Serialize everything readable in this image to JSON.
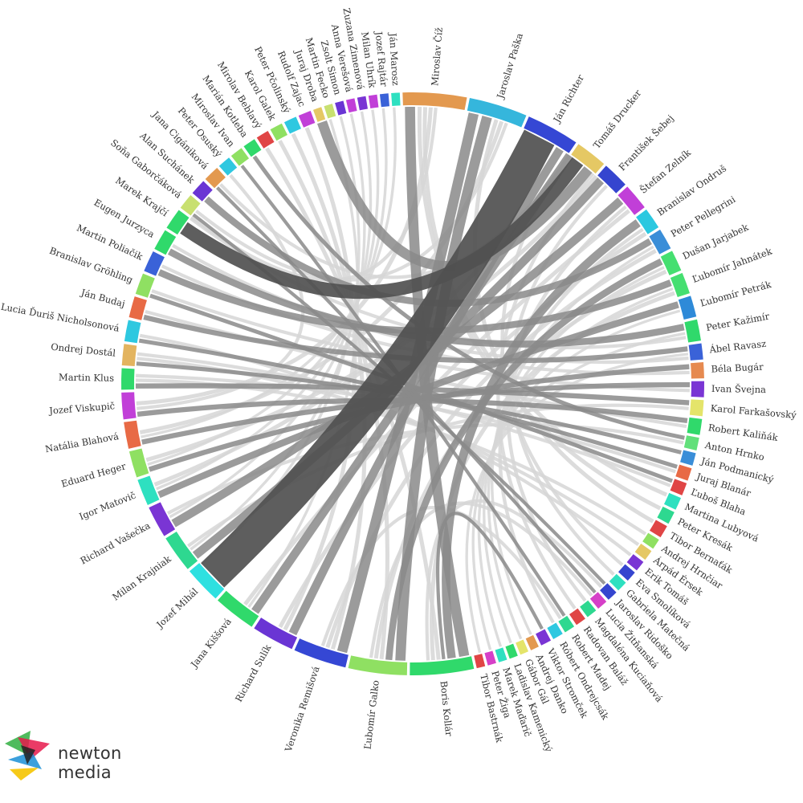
{
  "brand": {
    "name": "newton media",
    "logo_colors": [
      "#3cb44b",
      "#e6194b",
      "#1a8fd6",
      "#f5c400",
      "#222222"
    ]
  },
  "chart_data": {
    "type": "chord",
    "nodes": [
      {
        "name": "Miroslav Číž",
        "weight": 6,
        "color": "#e3994f"
      },
      {
        "name": "Jaroslav Paška",
        "weight": 5.5,
        "color": "#35b6dc"
      },
      {
        "name": "Ján Richter",
        "weight": 5,
        "color": "#3547d4"
      },
      {
        "name": "Tomáš Drucker",
        "weight": 3,
        "color": "#e5c864"
      },
      {
        "name": "František Šebej",
        "weight": 2.5,
        "color": "#3545cf"
      },
      {
        "name": "Štefan Zelník",
        "weight": 2.5,
        "color": "#c13fd8"
      },
      {
        "name": "Branislav Ondruš",
        "weight": 2,
        "color": "#2bc8e0"
      },
      {
        "name": "Peter Pellegrini",
        "weight": 2,
        "color": "#3a8ed8"
      },
      {
        "name": "Dušan Jarjabek",
        "weight": 2,
        "color": "#45df70"
      },
      {
        "name": "Ľubomír Jahnátek",
        "weight": 2,
        "color": "#45df70"
      },
      {
        "name": "Ľubomír Petrák",
        "weight": 2,
        "color": "#2e8ad8"
      },
      {
        "name": "Peter Kažimír",
        "weight": 2,
        "color": "#30d96b"
      },
      {
        "name": "Ábel Ravasz",
        "weight": 1.5,
        "color": "#3a62d8"
      },
      {
        "name": "Béla Bugár",
        "weight": 1.5,
        "color": "#e68a50"
      },
      {
        "name": "Ivan Švejna",
        "weight": 1.5,
        "color": "#7a35d4"
      },
      {
        "name": "Karol Farkašovský",
        "weight": 1.5,
        "color": "#e4e46a"
      },
      {
        "name": "Robert Kaliňák",
        "weight": 1.5,
        "color": "#30d96b"
      },
      {
        "name": "Anton Hrnko",
        "weight": 1.2,
        "color": "#62e07a"
      },
      {
        "name": "Ján Podmanický",
        "weight": 1.2,
        "color": "#3a8ed8"
      },
      {
        "name": "Juraj Blanár",
        "weight": 1.2,
        "color": "#e86a45"
      },
      {
        "name": "Ľuboš Blaha",
        "weight": 1.2,
        "color": "#e04545"
      },
      {
        "name": "Martina Lubyová",
        "weight": 1.2,
        "color": "#2ee0c0"
      },
      {
        "name": "Peter Kresák",
        "weight": 1.2,
        "color": "#2ed890"
      },
      {
        "name": "Tibor Bernaťák",
        "weight": 1.2,
        "color": "#e04545"
      },
      {
        "name": "Andrej Hrnčiar",
        "weight": 1,
        "color": "#8fe062"
      },
      {
        "name": "Árpád Érsek",
        "weight": 1,
        "color": "#e5c864"
      },
      {
        "name": "Erik Tomáš",
        "weight": 1,
        "color": "#7a35d4"
      },
      {
        "name": "Eva Smolíková",
        "weight": 1,
        "color": "#3545cf"
      },
      {
        "name": "Gabriela Matečná",
        "weight": 1,
        "color": "#2ee0c0"
      },
      {
        "name": "Jaroslav Ridoško",
        "weight": 1,
        "color": "#3545cf"
      },
      {
        "name": "Lucia Žitňanská",
        "weight": 1,
        "color": "#d640c8"
      },
      {
        "name": "Magdaléna Kuciaňová",
        "weight": 1,
        "color": "#2ed890"
      },
      {
        "name": "Radovan Baláž",
        "weight": 1,
        "color": "#e04545"
      },
      {
        "name": "Robert Madej",
        "weight": 1,
        "color": "#2ed890"
      },
      {
        "name": "Róbert Ondrejcsák",
        "weight": 1,
        "color": "#2ec8e0"
      },
      {
        "name": "Viktor Stromček",
        "weight": 1,
        "color": "#7a35d4"
      },
      {
        "name": "Andrej Danko",
        "weight": 0.8,
        "color": "#e3994f"
      },
      {
        "name": "Gábor Gál",
        "weight": 0.8,
        "color": "#e4e46a"
      },
      {
        "name": "Ladislav Kamenický",
        "weight": 0.8,
        "color": "#30d96b"
      },
      {
        "name": "Marek Maďarič",
        "weight": 0.8,
        "color": "#2ee0c0"
      },
      {
        "name": "Peter Žiga",
        "weight": 0.8,
        "color": "#d640c8"
      },
      {
        "name": "Tibor Bastrnák",
        "weight": 0.8,
        "color": "#e04545"
      },
      {
        "name": "Boris Kollár",
        "weight": 6,
        "color": "#30d96b"
      },
      {
        "name": "Ľubomír Galko",
        "weight": 5.5,
        "color": "#8fe062"
      },
      {
        "name": "Veronika Remišová",
        "weight": 5,
        "color": "#3547d4"
      },
      {
        "name": "Richard Sulík",
        "weight": 4,
        "color": "#6a35d4"
      },
      {
        "name": "Jana Kiššová",
        "weight": 4,
        "color": "#30d96b"
      },
      {
        "name": "Jozef Mihál",
        "weight": 3.5,
        "color": "#2ee0e0"
      },
      {
        "name": "Milan Krajniak",
        "weight": 3.5,
        "color": "#2ed890"
      },
      {
        "name": "Richard Vašečka",
        "weight": 3,
        "color": "#7a35d4"
      },
      {
        "name": "Igor Matovič",
        "weight": 2.5,
        "color": "#2ee0c0"
      },
      {
        "name": "Eduard Heger",
        "weight": 2.5,
        "color": "#8fe062"
      },
      {
        "name": "Natália Blahová",
        "weight": 2.5,
        "color": "#e86a45"
      },
      {
        "name": "Jozef Viskupič",
        "weight": 2.5,
        "color": "#c13fd8"
      },
      {
        "name": "Martin Klus",
        "weight": 2,
        "color": "#30d96b"
      },
      {
        "name": "Ondrej Dostál",
        "weight": 2,
        "color": "#e3b45f"
      },
      {
        "name": "Lucia Ďuriš Nicholsonová",
        "weight": 2,
        "color": "#2ec8e0"
      },
      {
        "name": "Ján Budaj",
        "weight": 2,
        "color": "#e86a45"
      },
      {
        "name": "Branislav Gröhling",
        "weight": 2,
        "color": "#8fe062"
      },
      {
        "name": "Martin Poliačik",
        "weight": 2,
        "color": "#3a62d8"
      },
      {
        "name": "Eugen Jurzyca",
        "weight": 2,
        "color": "#30d96b"
      },
      {
        "name": "Marek Krajčí",
        "weight": 2,
        "color": "#30d96b"
      },
      {
        "name": "Soňa Gaborčáková",
        "weight": 1.5,
        "color": "#c8e070"
      },
      {
        "name": "Alan Suchánek",
        "weight": 1.5,
        "color": "#6a35d4"
      },
      {
        "name": "Jana Cigániková",
        "weight": 1.5,
        "color": "#e3994f"
      },
      {
        "name": "Peter Osuský",
        "weight": 1.2,
        "color": "#2ec8e0"
      },
      {
        "name": "Miroslav Ivan",
        "weight": 1.2,
        "color": "#8fe062"
      },
      {
        "name": "Marián Kotleba",
        "weight": 1.2,
        "color": "#30d96b"
      },
      {
        "name": "Mirolav Beblavý",
        "weight": 1.2,
        "color": "#e04545"
      },
      {
        "name": "Karol Galek",
        "weight": 1.2,
        "color": "#8fe062"
      },
      {
        "name": "Peter Pčolinský",
        "weight": 1.2,
        "color": "#2ec8e0"
      },
      {
        "name": "Rudolf Zajac",
        "weight": 1.2,
        "color": "#c13fd8"
      },
      {
        "name": "Juraj Droba",
        "weight": 0.8,
        "color": "#e5c864"
      },
      {
        "name": "Martin Fecko",
        "weight": 0.8,
        "color": "#c8e070"
      },
      {
        "name": "Zsolt Simon",
        "weight": 0.8,
        "color": "#6a35d4"
      },
      {
        "name": "Anna Verešová",
        "weight": 0.8,
        "color": "#c13fd8"
      },
      {
        "name": "Zuzana Zimenová",
        "weight": 0.8,
        "color": "#7a35d4"
      },
      {
        "name": "Milan Uhrík",
        "weight": 0.8,
        "color": "#c13fd8"
      },
      {
        "name": "Jozef Rajtár",
        "weight": 0.8,
        "color": "#3a62d8"
      },
      {
        "name": "Ján Marosz",
        "weight": 0.8,
        "color": "#2ee0c0"
      }
    ],
    "links": [
      {
        "source": "Ján Richter",
        "target": "Jozef Mihál",
        "value": 10,
        "highlight": "strong"
      },
      {
        "source": "Tomáš Drucker",
        "target": "Marek Krajčí",
        "value": 4,
        "highlight": "strong"
      },
      {
        "source": "Tomáš Drucker",
        "target": "Juraj Droba",
        "value": 3,
        "highlight": "medium"
      },
      {
        "source": "Jaroslav Paška",
        "target": "Veronika Remišová",
        "value": 3,
        "highlight": "medium"
      },
      {
        "source": "Jaroslav Paška",
        "target": "Ľubomír Galko",
        "value": 3,
        "highlight": "medium"
      },
      {
        "source": "Miroslav Číž",
        "target": "Boris Kollár",
        "value": 3,
        "highlight": "medium"
      },
      {
        "source": "Ján Richter",
        "target": "Richard Sulík",
        "value": 2.5,
        "highlight": "medium"
      },
      {
        "source": "Ján Richter",
        "target": "Jana Kiššová",
        "value": 2.5,
        "highlight": "medium"
      },
      {
        "source": "František Šebej",
        "target": "Milan Krajniak",
        "value": 2.5,
        "highlight": "medium"
      },
      {
        "source": "Štefan Zelník",
        "target": "Richard Vašečka",
        "value": 2.5,
        "highlight": "medium"
      },
      {
        "source": "Branislav Ondruš",
        "target": "Boris Kollár",
        "value": 2.5,
        "highlight": "medium"
      },
      {
        "source": "Peter Pellegrini",
        "target": "Alan Suchánek",
        "value": 2,
        "highlight": "medium"
      },
      {
        "source": "Dušan Jarjabek",
        "target": "Ľubomír Galko",
        "value": 2,
        "highlight": "medium"
      },
      {
        "source": "Ľubomír Jahnátek",
        "target": "Martin Poliačik",
        "value": 2,
        "highlight": "medium"
      },
      {
        "source": "Ľubomír Petrák",
        "target": "Igor Matovič",
        "value": 2,
        "highlight": "medium"
      },
      {
        "source": "Peter Kažimír",
        "target": "Eugen Jurzyca",
        "value": 2,
        "highlight": "medium"
      },
      {
        "source": "Ábel Ravasz",
        "target": "Ján Budaj",
        "value": 1.5,
        "highlight": "medium"
      },
      {
        "source": "Béla Bugár",
        "target": "Eduard Heger",
        "value": 1.5,
        "highlight": "medium"
      },
      {
        "source": "Ivan Švejna",
        "target": "Natália Blahová",
        "value": 1.5,
        "highlight": "medium"
      },
      {
        "source": "Robert Kaliňák",
        "target": "Jozef Viskupič",
        "value": 1.5,
        "highlight": "medium"
      },
      {
        "source": "Karol Farkašovský",
        "target": "Martin Klus",
        "value": 1.5,
        "highlight": "medium"
      },
      {
        "source": "Ján Podmanický",
        "target": "Ondrej Dostál",
        "value": 1.2,
        "highlight": "medium"
      },
      {
        "source": "Juraj Blanár",
        "target": "Lucia Ďuriš Nicholsonová",
        "value": 1.2,
        "highlight": "medium"
      },
      {
        "source": "Ľuboš Blaha",
        "target": "Branislav Gröhling",
        "value": 1.2,
        "highlight": "medium"
      },
      {
        "source": "Anton Hrnko",
        "target": "Marián Kotleba",
        "value": 1.2,
        "highlight": "medium"
      },
      {
        "source": "Jaroslav Ridoško",
        "target": "Soňa Gaborčáková",
        "value": 1,
        "highlight": "medium"
      },
      {
        "source": "Lucia Žitňanská",
        "target": "Jana Cigániková",
        "value": 1,
        "highlight": "medium"
      },
      {
        "source": "Robert Madej",
        "target": "Miroslav Ivan",
        "value": 1,
        "highlight": "medium"
      },
      {
        "source": "Viktor Stromček",
        "target": "Boris Kollár",
        "value": 1,
        "highlight": "medium"
      },
      {
        "source": "Miroslav Číž",
        "target": "Peter Kresák",
        "value": 1.2,
        "highlight": "light"
      },
      {
        "source": "Miroslav Číž",
        "target": "Martina Lubyová",
        "value": 1.2,
        "highlight": "light"
      },
      {
        "source": "Jaroslav Paška",
        "target": "Tibor Bernaťák",
        "value": 1.2,
        "highlight": "light"
      },
      {
        "source": "Ján Richter",
        "target": "Eva Smolíková",
        "value": 1,
        "highlight": "light"
      },
      {
        "source": "Tomáš Drucker",
        "target": "Radovan Baláž",
        "value": 1,
        "highlight": "light"
      },
      {
        "source": "František Šebej",
        "target": "Gabriela Matečná",
        "value": 1,
        "highlight": "light"
      },
      {
        "source": "Štefan Zelník",
        "target": "Magdaléna Kuciaňová",
        "value": 1,
        "highlight": "light"
      },
      {
        "source": "Branislav Ondruš",
        "target": "Róbert Ondrejcsák",
        "value": 1,
        "highlight": "light"
      },
      {
        "source": "Peter Pellegrini",
        "target": "Andrej Danko",
        "value": 0.8,
        "highlight": "light"
      },
      {
        "source": "Dušan Jarjabek",
        "target": "Gábor Gál",
        "value": 0.8,
        "highlight": "light"
      },
      {
        "source": "Ľubomír Jahnátek",
        "target": "Ladislav Kamenický",
        "value": 0.8,
        "highlight": "light"
      },
      {
        "source": "Ľubomír Petrák",
        "target": "Marek Maďarič",
        "value": 0.8,
        "highlight": "light"
      },
      {
        "source": "Peter Kažimír",
        "target": "Peter Žiga",
        "value": 0.8,
        "highlight": "light"
      },
      {
        "source": "Ábel Ravasz",
        "target": "Tibor Bastrnák",
        "value": 0.8,
        "highlight": "light"
      },
      {
        "source": "Boris Kollár",
        "target": "Mirolav Beblavý",
        "value": 1.2,
        "highlight": "light"
      },
      {
        "source": "Ľubomír Galko",
        "target": "Karol Galek",
        "value": 1.2,
        "highlight": "light"
      },
      {
        "source": "Veronika Remišová",
        "target": "Peter Pčolinský",
        "value": 1.2,
        "highlight": "light"
      },
      {
        "source": "Richard Sulík",
        "target": "Rudolf Zajac",
        "value": 1.2,
        "highlight": "light"
      },
      {
        "source": "Jana Kiššová",
        "target": "Martin Fecko",
        "value": 0.8,
        "highlight": "light"
      },
      {
        "source": "Jozef Mihál",
        "target": "Zsolt Simon",
        "value": 0.8,
        "highlight": "light"
      },
      {
        "source": "Milan Krajniak",
        "target": "Anna Verešová",
        "value": 0.8,
        "highlight": "light"
      },
      {
        "source": "Richard Vašečka",
        "target": "Zuzana Zimenová",
        "value": 0.8,
        "highlight": "light"
      },
      {
        "source": "Igor Matovič",
        "target": "Milan Uhrík",
        "value": 0.8,
        "highlight": "light"
      },
      {
        "source": "Eduard Heger",
        "target": "Jozef Rajtár",
        "value": 0.8,
        "highlight": "light"
      },
      {
        "source": "Natália Blahová",
        "target": "Ján Marosz",
        "value": 0.8,
        "highlight": "light"
      },
      {
        "source": "Jozef Viskupič",
        "target": "Peter Osuský",
        "value": 1,
        "highlight": "light"
      },
      {
        "source": "Martin Klus",
        "target": "Andrej Hrnčiar",
        "value": 1,
        "highlight": "light"
      },
      {
        "source": "Ondrej Dostál",
        "target": "Árpád Érsek",
        "value": 1,
        "highlight": "light"
      },
      {
        "source": "Lucia Ďuriš Nicholsonová",
        "target": "Erik Tomáš",
        "value": 1,
        "highlight": "light"
      },
      {
        "source": "Ján Budaj",
        "target": "Robert Kaliňák",
        "value": 1,
        "highlight": "light"
      },
      {
        "source": "Branislav Gröhling",
        "target": "Ivan Švejna",
        "value": 1,
        "highlight": "light"
      },
      {
        "source": "Martin Poliačik",
        "target": "Béla Bugár",
        "value": 1,
        "highlight": "light"
      },
      {
        "source": "Eugen Jurzyca",
        "target": "Ábel Ravasz",
        "value": 1,
        "highlight": "light"
      },
      {
        "source": "Marek Krajčí",
        "target": "Peter Kažimír",
        "value": 1,
        "highlight": "light"
      },
      {
        "source": "Miroslav Číž",
        "target": "Jozef Viskupič",
        "value": 1.2,
        "highlight": "light"
      },
      {
        "source": "Jaroslav Paška",
        "target": "Natália Blahová",
        "value": 1.2,
        "highlight": "light"
      },
      {
        "source": "Ján Richter",
        "target": "Igor Matovič",
        "value": 1.2,
        "highlight": "light"
      },
      {
        "source": "Tomáš Drucker",
        "target": "Eduard Heger",
        "value": 1.2,
        "highlight": "light"
      },
      {
        "source": "Boris Kollár",
        "target": "Ľubomír Jahnátek",
        "value": 1.2,
        "highlight": "light"
      },
      {
        "source": "Ľubomír Galko",
        "target": "Dušan Jarjabek",
        "value": 1.2,
        "highlight": "light"
      },
      {
        "source": "Veronika Remišová",
        "target": "Peter Pellegrini",
        "value": 1.2,
        "highlight": "light"
      },
      {
        "source": "Richard Sulík",
        "target": "Branislav Ondruš",
        "value": 1.2,
        "highlight": "light"
      },
      {
        "source": "Jana Kiššová",
        "target": "Štefan Zelník",
        "value": 1.2,
        "highlight": "light"
      },
      {
        "source": "Milan Krajniak",
        "target": "Karol Farkašovský",
        "value": 1,
        "highlight": "light"
      },
      {
        "source": "Richard Vašečka",
        "target": "Anton Hrnko",
        "value": 1,
        "highlight": "light"
      },
      {
        "source": "Martin Klus",
        "target": "Juraj Blanár",
        "value": 1,
        "highlight": "light"
      },
      {
        "source": "Ondrej Dostál",
        "target": "Ľuboš Blaha",
        "value": 1,
        "highlight": "light"
      },
      {
        "source": "Miroslav Číž",
        "target": "Marek Krajčí",
        "value": 1,
        "highlight": "light"
      },
      {
        "source": "Jaroslav Paška",
        "target": "Soňa Gaborčáková",
        "value": 1,
        "highlight": "light"
      },
      {
        "source": "Ján Richter",
        "target": "Jana Cigániková",
        "value": 1,
        "highlight": "light"
      },
      {
        "source": "Boris Kollár",
        "target": "Jaroslav Ridoško",
        "value": 1,
        "highlight": "light"
      },
      {
        "source": "Ľubomír Galko",
        "target": "Lucia Žitňanská",
        "value": 1,
        "highlight": "light"
      },
      {
        "source": "Veronika Remišová",
        "target": "Robert Madej",
        "value": 1,
        "highlight": "light"
      }
    ]
  }
}
